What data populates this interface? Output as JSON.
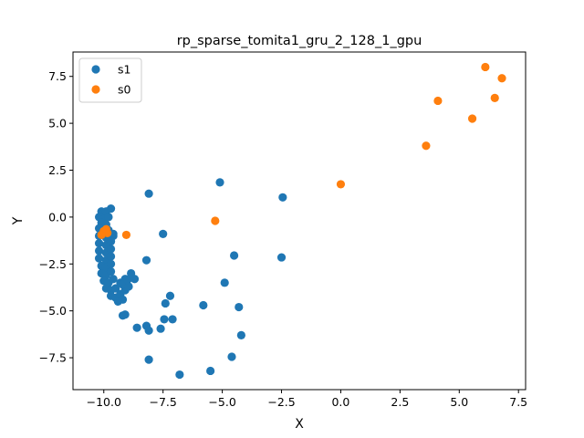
{
  "chart_data": {
    "type": "scatter",
    "title": "rp_sparse_tomita1_gru_2_128_1_gpu",
    "xlabel": "X",
    "ylabel": "Y",
    "xlim": [
      -11.3,
      7.8
    ],
    "ylim": [
      -9.2,
      8.8
    ],
    "xticks": [
      -10.0,
      -7.5,
      -5.0,
      -2.5,
      0.0,
      2.5,
      5.0,
      7.5
    ],
    "xtick_labels": [
      "−10.0",
      "−7.5",
      "−5.0",
      "−2.5",
      "0.0",
      "2.5",
      "5.0",
      "7.5"
    ],
    "yticks": [
      -7.5,
      -5.0,
      -2.5,
      0.0,
      2.5,
      5.0,
      7.5
    ],
    "ytick_labels": [
      "−7.5",
      "−5.0",
      "−2.5",
      "0.0",
      "2.5",
      "5.0",
      "7.5"
    ],
    "grid": false,
    "legend_position": "top-left",
    "series": [
      {
        "name": "s1",
        "color": "#1f77b4",
        "points": [
          [
            -10.1,
            0.3
          ],
          [
            -10.0,
            0.2
          ],
          [
            -9.9,
            0.3
          ],
          [
            -9.7,
            0.45
          ],
          [
            -10.2,
            0.0
          ],
          [
            -10.0,
            -0.1
          ],
          [
            -9.8,
            0.0
          ],
          [
            -10.1,
            -0.3
          ],
          [
            -9.9,
            -0.4
          ],
          [
            -10.2,
            -0.6
          ],
          [
            -10.0,
            -0.8
          ],
          [
            -9.8,
            -0.7
          ],
          [
            -10.2,
            -1.0
          ],
          [
            -9.9,
            -1.1
          ],
          [
            -9.6,
            -1.0
          ],
          [
            -10.2,
            -1.4
          ],
          [
            -9.9,
            -1.5
          ],
          [
            -9.7,
            -1.3
          ],
          [
            -10.2,
            -1.8
          ],
          [
            -9.9,
            -1.9
          ],
          [
            -9.7,
            -1.7
          ],
          [
            -10.2,
            -2.2
          ],
          [
            -9.9,
            -2.3
          ],
          [
            -9.7,
            -2.1
          ],
          [
            -10.1,
            -2.6
          ],
          [
            -9.9,
            -2.7
          ],
          [
            -9.7,
            -2.5
          ],
          [
            -10.1,
            -3.0
          ],
          [
            -9.9,
            -3.1
          ],
          [
            -9.7,
            -2.9
          ],
          [
            -10.0,
            -3.4
          ],
          [
            -9.8,
            -3.5
          ],
          [
            -9.6,
            -3.3
          ],
          [
            -9.9,
            -3.8
          ],
          [
            -9.7,
            -3.9
          ],
          [
            -9.5,
            -3.8
          ],
          [
            -9.7,
            -4.2
          ],
          [
            -9.5,
            -4.3
          ],
          [
            -9.3,
            -4.1
          ],
          [
            -9.2,
            -4.4
          ],
          [
            -9.4,
            -4.5
          ],
          [
            -9.1,
            -3.9
          ],
          [
            -9.3,
            -3.5
          ],
          [
            -9.1,
            -3.3
          ],
          [
            -9.2,
            -3.6
          ],
          [
            -8.95,
            -3.7
          ],
          [
            -9.0,
            -3.35
          ],
          [
            -8.85,
            -3.0
          ],
          [
            -8.7,
            -3.3
          ],
          [
            -9.6,
            -0.9
          ],
          [
            -9.2,
            -5.25
          ],
          [
            -9.1,
            -5.2
          ],
          [
            -8.6,
            -5.9
          ],
          [
            -8.2,
            -5.8
          ],
          [
            -8.1,
            -6.05
          ],
          [
            -7.6,
            -5.95
          ],
          [
            -7.45,
            -5.45
          ],
          [
            -7.4,
            -4.6
          ],
          [
            -7.2,
            -4.2
          ],
          [
            -7.1,
            -5.45
          ],
          [
            -8.2,
            -2.3
          ],
          [
            -7.5,
            -0.9
          ],
          [
            -8.1,
            1.25
          ],
          [
            -8.1,
            -7.6
          ],
          [
            -6.8,
            -8.4
          ],
          [
            -5.8,
            -4.7
          ],
          [
            -5.5,
            -8.2
          ],
          [
            -5.1,
            1.85
          ],
          [
            -4.9,
            -3.5
          ],
          [
            -4.5,
            -2.05
          ],
          [
            -4.6,
            -7.45
          ],
          [
            -4.3,
            -4.8
          ],
          [
            -4.2,
            -6.3
          ],
          [
            -2.45,
            1.05
          ],
          [
            -2.5,
            -2.15
          ]
        ]
      },
      {
        "name": "s0",
        "color": "#ff7f0e",
        "points": [
          [
            -10.0,
            -0.75
          ],
          [
            -9.85,
            -0.85
          ],
          [
            -10.1,
            -0.95
          ],
          [
            -9.9,
            -0.65
          ],
          [
            -9.05,
            -0.95
          ],
          [
            -5.3,
            -0.2
          ],
          [
            0.0,
            1.75
          ],
          [
            3.6,
            3.8
          ],
          [
            4.1,
            6.2
          ],
          [
            5.55,
            5.25
          ],
          [
            6.1,
            8.0
          ],
          [
            6.5,
            6.35
          ],
          [
            6.8,
            7.4
          ]
        ]
      }
    ]
  }
}
